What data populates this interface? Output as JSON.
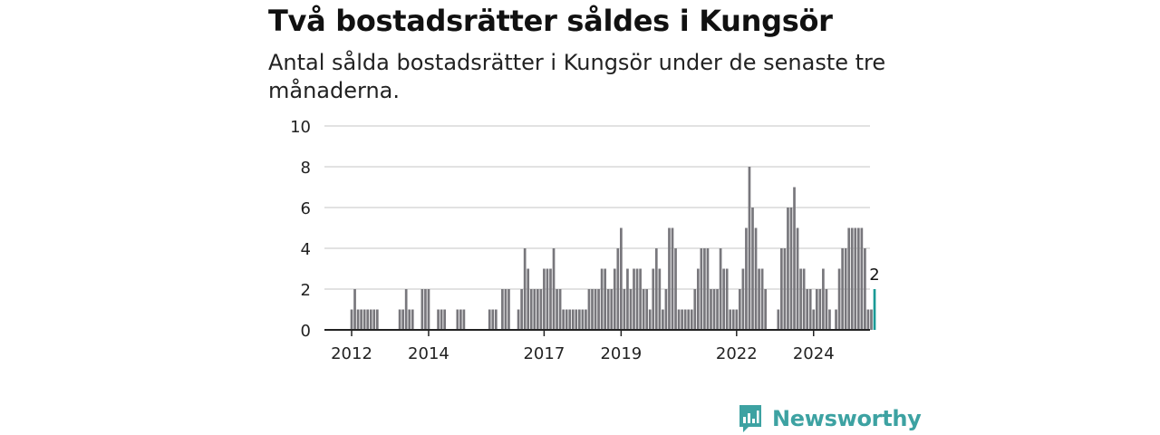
{
  "title": "Två bostadsrätter såldes i Kungsör",
  "subtitle": "Antal sålda bostadsrätter i Kungsör under de senaste tre månaderna.",
  "brand": {
    "name": "Newsworthy",
    "color": "#3da2a2",
    "icon": "bar-chart-speech-bubble-icon"
  },
  "chart_data": {
    "type": "bar",
    "title": "",
    "xlabel": "",
    "ylabel": "",
    "ylim": [
      0,
      10
    ],
    "yticks": [
      0,
      2,
      4,
      6,
      8,
      10
    ],
    "grid": true,
    "x_tick_labels": [
      "2012",
      "2014",
      "2017",
      "2019",
      "2022",
      "2024"
    ],
    "x_start": "2012-01",
    "bar_color": "#78777c",
    "highlight_color": "#1a9a96",
    "highlight_label": "2",
    "values": [
      1,
      2,
      1,
      1,
      1,
      1,
      1,
      1,
      1,
      0,
      0,
      0,
      0,
      0,
      0,
      1,
      1,
      2,
      1,
      1,
      0,
      0,
      2,
      2,
      2,
      0,
      0,
      1,
      1,
      1,
      0,
      0,
      0,
      1,
      1,
      1,
      0,
      0,
      0,
      0,
      0,
      0,
      0,
      1,
      1,
      1,
      0,
      2,
      2,
      2,
      0,
      0,
      1,
      2,
      4,
      3,
      2,
      2,
      2,
      2,
      3,
      3,
      3,
      4,
      2,
      2,
      1,
      1,
      1,
      1,
      1,
      1,
      1,
      1,
      2,
      2,
      2,
      2,
      3,
      3,
      2,
      2,
      3,
      4,
      5,
      2,
      3,
      2,
      3,
      3,
      3,
      2,
      2,
      1,
      3,
      4,
      3,
      1,
      2,
      5,
      5,
      4,
      1,
      1,
      1,
      1,
      1,
      2,
      3,
      4,
      4,
      4,
      2,
      2,
      2,
      4,
      3,
      3,
      1,
      1,
      1,
      2,
      3,
      5,
      8,
      6,
      5,
      3,
      3,
      2,
      0,
      0,
      0,
      1,
      4,
      4,
      6,
      6,
      7,
      5,
      3,
      3,
      2,
      2,
      1,
      2,
      2,
      3,
      2,
      1,
      0,
      1,
      3,
      4,
      4,
      5,
      5,
      5,
      5,
      5,
      4,
      1,
      1,
      2
    ]
  }
}
